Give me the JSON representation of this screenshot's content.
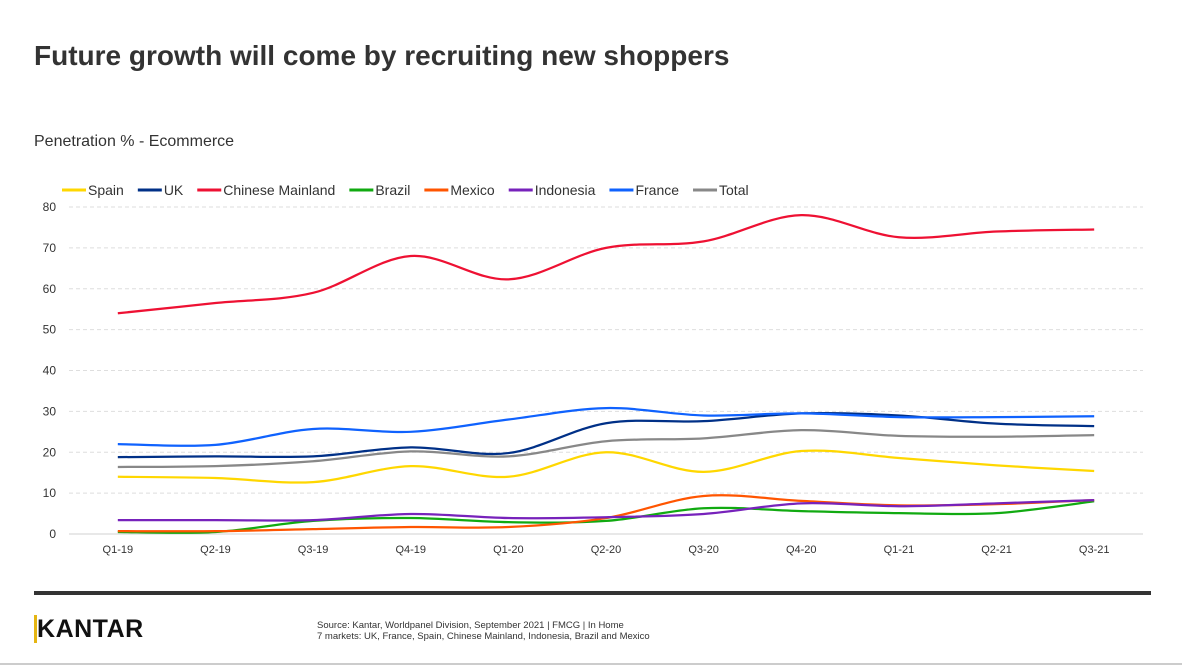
{
  "title": "Future growth will come by recruiting new shoppers",
  "subtitle": "Penetration % - Ecommerce",
  "footer": {
    "logo": "KANTAR",
    "source_line1": "Source: Kantar, Worldpanel Division, September 2021 | FMCG | In Home",
    "source_line2": "7 markets: UK, France, Spain, Chinese Mainland, Indonesia, Brazil and Mexico"
  },
  "chart_data": {
    "type": "line",
    "title": "Penetration % - Ecommerce",
    "categories": [
      "Q1-19",
      "Q2-19",
      "Q3-19",
      "Q4-19",
      "Q1-20",
      "Q2-20",
      "Q3-20",
      "Q4-20",
      "Q1-21",
      "Q2-21",
      "Q3-21"
    ],
    "ylim": [
      0,
      80
    ],
    "yticks": [
      0,
      10,
      20,
      30,
      40,
      50,
      60,
      70,
      80
    ],
    "grid": true,
    "smooth": true,
    "legend": "top",
    "series": [
      {
        "name": "Spain",
        "color": "#ffd700",
        "values": [
          14,
          13.7,
          12.7,
          16.6,
          14,
          20,
          15.2,
          20.3,
          18.6,
          16.8,
          15.4
        ]
      },
      {
        "name": "UK",
        "color": "#003087",
        "values": [
          18.8,
          19,
          19,
          21.2,
          19.8,
          27.1,
          27.6,
          29.5,
          29,
          27,
          26.4
        ]
      },
      {
        "name": "Chinese Mainland",
        "color": "#ee1133",
        "values": [
          54,
          56.5,
          59,
          68,
          62.3,
          70,
          71.6,
          78,
          72.6,
          74,
          74.5
        ]
      },
      {
        "name": "Brazil",
        "color": "#11aa11",
        "values": [
          0.5,
          0.5,
          3.2,
          3.9,
          2.9,
          3.2,
          6.3,
          5.6,
          5.1,
          5.1,
          8
        ]
      },
      {
        "name": "Mexico",
        "color": "#ff5500",
        "values": [
          0.7,
          0.7,
          1.2,
          1.7,
          1.7,
          3.9,
          9.3,
          8.1,
          7,
          7.3,
          8.3
        ]
      },
      {
        "name": "Indonesia",
        "color": "#7722bb",
        "values": [
          3.4,
          3.4,
          3.4,
          4.9,
          3.9,
          4.1,
          4.9,
          7.5,
          6.8,
          7.5,
          8.3
        ]
      },
      {
        "name": "France",
        "color": "#0f62fe",
        "values": [
          22,
          21.8,
          25.7,
          25,
          28,
          30.8,
          29,
          29.5,
          28.6,
          28.6,
          28.8
        ]
      },
      {
        "name": "Total",
        "color": "#888888",
        "values": [
          16.4,
          16.6,
          17.8,
          20.2,
          19,
          22.7,
          23.4,
          25.4,
          24,
          23.8,
          24.2
        ]
      }
    ]
  }
}
